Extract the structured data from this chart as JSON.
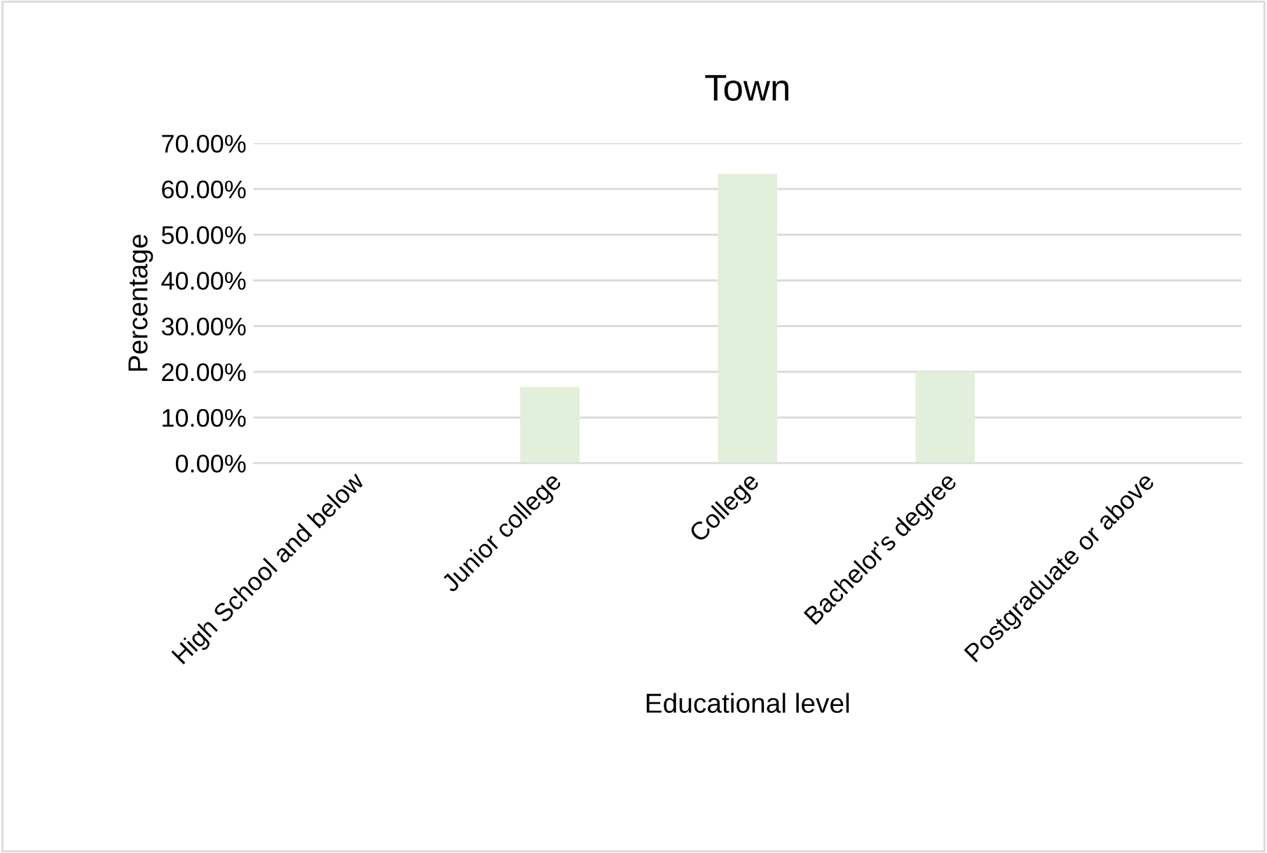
{
  "chart_data": {
    "type": "bar",
    "title": "Town",
    "xlabel": "Educational level",
    "ylabel": "Percentage",
    "categories": [
      "High School and below",
      "Junior college",
      "College",
      "Bachelor's degree",
      "Postgraduate or above"
    ],
    "values": [
      0,
      16.7,
      63.3,
      20,
      0
    ],
    "color": "#e2efda",
    "ylim": [
      0,
      70
    ],
    "yticks": [
      {
        "value": 0,
        "label": "0.00%"
      },
      {
        "value": 10,
        "label": "10.00%"
      },
      {
        "value": 20,
        "label": "20.00%"
      },
      {
        "value": 30,
        "label": "30.00%"
      },
      {
        "value": 40,
        "label": "40.00%"
      },
      {
        "value": 50,
        "label": "50.00%"
      },
      {
        "value": 60,
        "label": "60.00%"
      },
      {
        "value": 70,
        "label": "70.00%"
      }
    ],
    "grid": "y",
    "legend": false
  }
}
